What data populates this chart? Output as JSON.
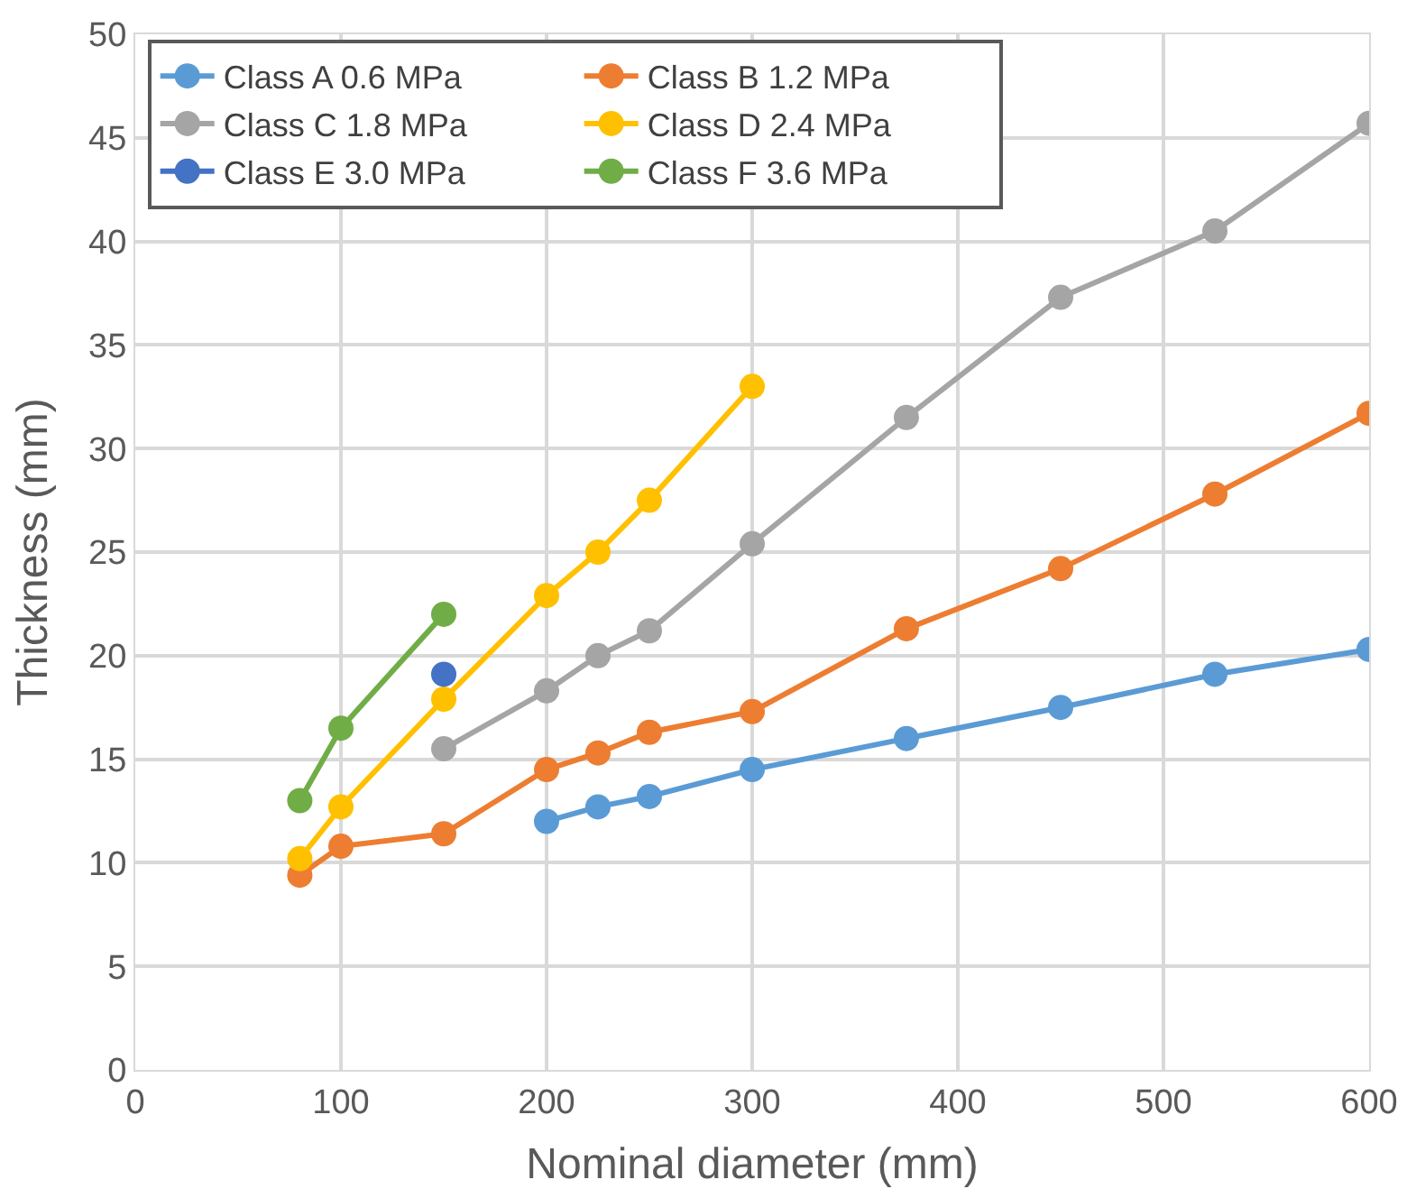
{
  "chart_data": {
    "type": "line",
    "xlabel": "Nominal diameter (mm)",
    "ylabel": "Thickness (mm)",
    "xlim": [
      0,
      600
    ],
    "xticks": [
      0,
      100,
      200,
      300,
      400,
      500,
      600
    ],
    "ylim": [
      0,
      50
    ],
    "yticks": [
      0,
      5,
      10,
      15,
      20,
      25,
      30,
      35,
      40,
      45,
      50
    ],
    "grid": true,
    "legend": "top left",
    "marker": "circle",
    "line_style": "solid",
    "series": [
      {
        "name": "Class A 0.6 MPa",
        "color": "#5b9bd5",
        "x": [
          200,
          225,
          250,
          300,
          375,
          450,
          525,
          600
        ],
        "values": [
          12.0,
          12.7,
          13.2,
          14.5,
          16.0,
          17.5,
          19.1,
          20.3
        ]
      },
      {
        "name": "Class B 1.2 MPa",
        "color": "#ed7d31",
        "x": [
          80,
          100,
          150,
          200,
          225,
          250,
          300,
          375,
          450,
          525,
          600
        ],
        "values": [
          9.4,
          10.8,
          11.4,
          14.5,
          15.3,
          16.3,
          17.3,
          21.3,
          24.2,
          27.8,
          31.7
        ]
      },
      {
        "name": "Class C 1.8 MPa",
        "color": "#a5a5a5",
        "x": [
          150,
          200,
          225,
          250,
          300,
          375,
          450,
          525,
          600
        ],
        "values": [
          15.5,
          18.3,
          20.0,
          21.2,
          25.4,
          31.5,
          37.3,
          40.5,
          45.7
        ]
      },
      {
        "name": "Class D 2.4 MPa",
        "color": "#ffc000",
        "x": [
          80,
          100,
          150,
          200,
          225,
          250,
          300
        ],
        "values": [
          10.2,
          12.7,
          17.9,
          22.9,
          25.0,
          27.5,
          33.0
        ]
      },
      {
        "name": "Class E 3.0 MPa",
        "color": "#4472c4",
        "x": [
          150
        ],
        "values": [
          19.1
        ]
      },
      {
        "name": "Class F 3.6 MPa",
        "color": "#70ad47",
        "x": [
          80,
          100,
          150
        ],
        "values": [
          13.0,
          16.5,
          22.0
        ]
      }
    ]
  }
}
